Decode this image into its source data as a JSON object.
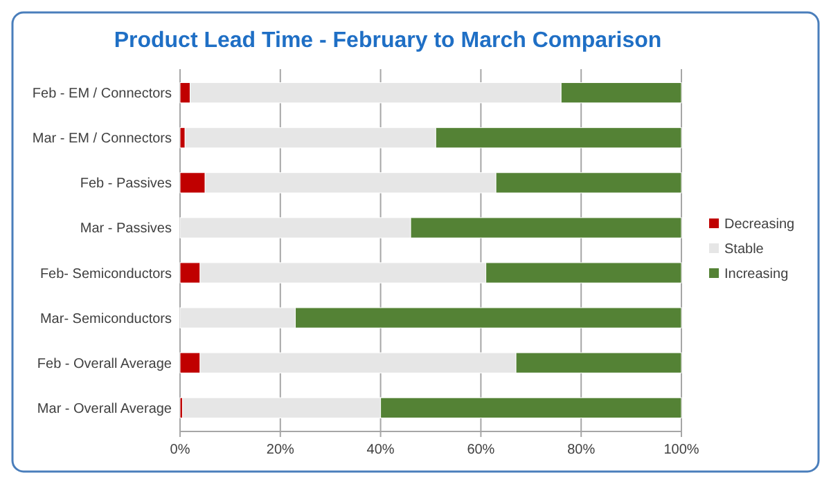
{
  "chart_data": {
    "type": "bar",
    "title": "Product Lead Time - February to March Comparison",
    "orientation": "horizontal",
    "stacked": true,
    "categories": [
      "Feb - EM / Connectors",
      "Mar - EM / Connectors",
      "Feb - Passives",
      "Mar - Passives",
      "Feb- Semiconductors",
      "Mar- Semiconductors",
      "Feb - Overall Average",
      "Mar - Overall Average"
    ],
    "series": [
      {
        "name": "Decreasing",
        "color": "#c00000",
        "values": [
          2,
          1,
          5,
          0,
          4,
          0,
          4,
          0.5
        ]
      },
      {
        "name": "Stable",
        "color": "#e6e6e6",
        "values": [
          74,
          50,
          58,
          46,
          57,
          23,
          63,
          39.5
        ]
      },
      {
        "name": "Increasing",
        "color": "#548235",
        "values": [
          24,
          49,
          37,
          54,
          39,
          77,
          33,
          60
        ]
      }
    ],
    "xlim": [
      0,
      100
    ],
    "xticks": [
      {
        "value": 0,
        "label": "0%"
      },
      {
        "value": 20,
        "label": "20%"
      },
      {
        "value": 40,
        "label": "40%"
      },
      {
        "value": 60,
        "label": "60%"
      },
      {
        "value": 80,
        "label": "80%"
      },
      {
        "value": 100,
        "label": "100%"
      }
    ],
    "grid": "x",
    "legend": "right"
  }
}
